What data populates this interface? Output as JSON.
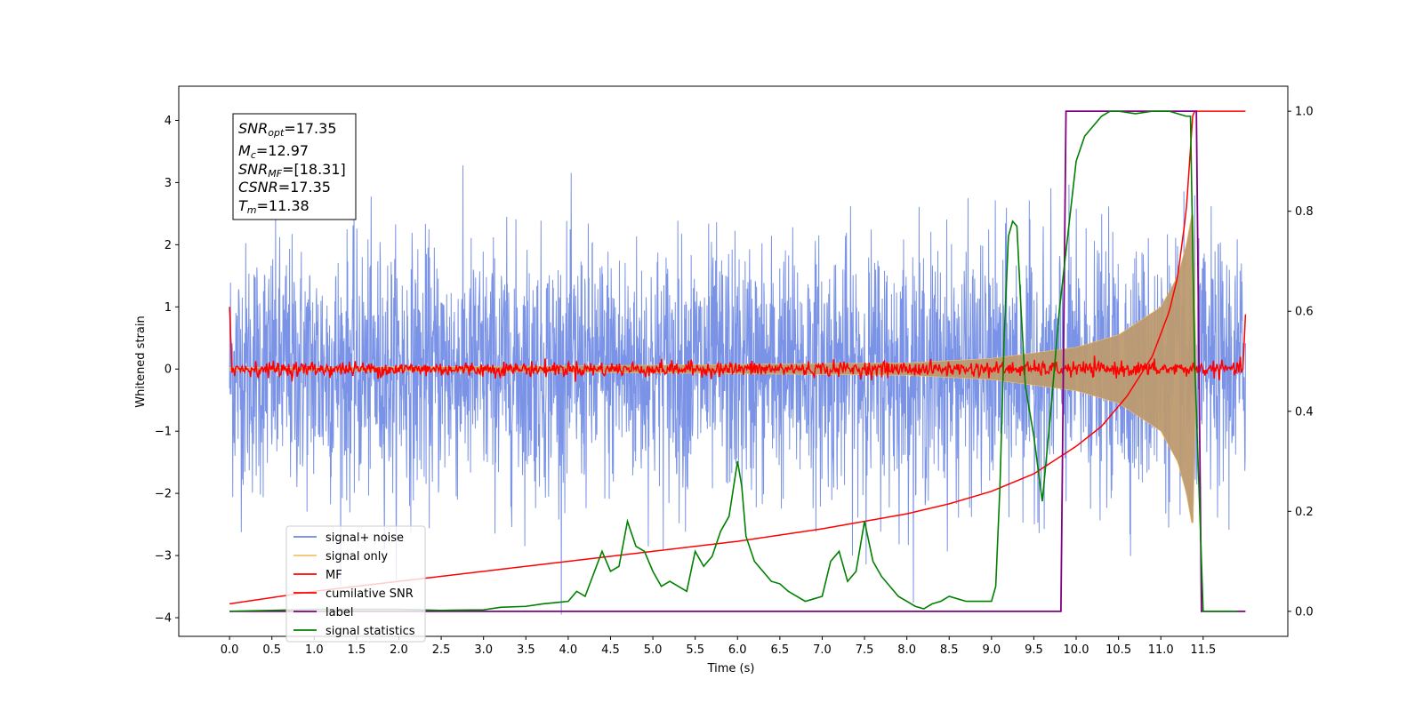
{
  "chart_data": {
    "type": "line",
    "title": "",
    "xlabel": "Time (s)",
    "ylabel": "Whitened strain",
    "xlim": [
      -0.6,
      12.5
    ],
    "ylim": [
      -4.3,
      4.55
    ],
    "y2lim": [
      -0.05,
      1.05
    ],
    "x_ticks": [
      "0.0",
      "0.5",
      "1.0",
      "1.5",
      "2.0",
      "2.5",
      "3.0",
      "3.5",
      "4.0",
      "4.5",
      "5.0",
      "5.5",
      "6.0",
      "6.5",
      "7.0",
      "7.5",
      "8.0",
      "8.5",
      "9.0",
      "9.5",
      "10.0",
      "10.5",
      "11.0",
      "11.5"
    ],
    "y_ticks": [
      "4",
      "3",
      "2",
      "1",
      "0",
      "−1",
      "−2",
      "−3",
      "−4"
    ],
    "y2_ticks": [
      "1.0",
      "0.8",
      "0.6",
      "0.4",
      "0.2",
      "0.0"
    ],
    "grid": false,
    "legend_position": "lower-left",
    "annotation": {
      "snr_opt": "17.35",
      "mc": "12.97",
      "snr_mf": "[18.31]",
      "csnr": "17.35",
      "tm": "11.38"
    },
    "series": [
      {
        "name": "signal+ noise",
        "color": "#6b87e3",
        "description_axis": "left",
        "noise_sigma": 1.0,
        "x_range": [
          0.0,
          12.0
        ]
      },
      {
        "name": "signal only",
        "color": "#f5c26b",
        "axis": "left",
        "envelope": [
          [
            0.0,
            0.02
          ],
          [
            4.0,
            0.05
          ],
          [
            8.0,
            0.1
          ],
          [
            9.0,
            0.17
          ],
          [
            10.0,
            0.35
          ],
          [
            10.5,
            0.55
          ],
          [
            11.0,
            1.0
          ],
          [
            11.2,
            1.5
          ],
          [
            11.3,
            2.0
          ],
          [
            11.38,
            2.6
          ],
          [
            11.42,
            0.0
          ]
        ]
      },
      {
        "name": "MF",
        "color": "#ff0000",
        "axis": "left",
        "start_value": 1.0,
        "end_value": 0.88,
        "noise_amplitude": 0.06
      },
      {
        "name": "cumilative SNR",
        "color": "#ff0000",
        "axis": "right",
        "x": [
          0.0,
          1.0,
          2.0,
          3.0,
          4.0,
          5.0,
          6.0,
          7.0,
          7.5,
          8.0,
          8.5,
          9.0,
          9.5,
          10.0,
          10.3,
          10.6,
          10.9,
          11.1,
          11.2,
          11.3,
          11.38,
          11.5,
          12.0
        ],
        "values": [
          0.015,
          0.04,
          0.06,
          0.08,
          0.1,
          0.12,
          0.14,
          0.165,
          0.18,
          0.195,
          0.215,
          0.24,
          0.275,
          0.33,
          0.37,
          0.43,
          0.51,
          0.6,
          0.67,
          0.8,
          1.0,
          1.0,
          1.0
        ]
      },
      {
        "name": "label",
        "color": "#800080",
        "axis": "right",
        "x": [
          0.0,
          9.82,
          9.88,
          11.42,
          11.48,
          12.0
        ],
        "values": [
          0.0,
          0.0,
          1.0,
          1.0,
          0.0,
          0.0
        ]
      },
      {
        "name": "signal statistics",
        "color": "#008000",
        "axis": "right",
        "x": [
          0.0,
          0.5,
          1.0,
          1.5,
          2.0,
          2.5,
          3.0,
          3.2,
          3.5,
          3.7,
          4.0,
          4.1,
          4.2,
          4.4,
          4.5,
          4.6,
          4.7,
          4.8,
          4.9,
          5.0,
          5.1,
          5.2,
          5.3,
          5.4,
          5.5,
          5.6,
          5.7,
          5.8,
          5.9,
          6.0,
          6.05,
          6.1,
          6.2,
          6.3,
          6.4,
          6.5,
          6.6,
          6.7,
          6.8,
          6.9,
          7.0,
          7.1,
          7.2,
          7.3,
          7.4,
          7.5,
          7.6,
          7.7,
          7.8,
          7.9,
          8.0,
          8.1,
          8.2,
          8.3,
          8.4,
          8.5,
          8.6,
          8.7,
          8.8,
          8.9,
          9.0,
          9.05,
          9.1,
          9.15,
          9.2,
          9.25,
          9.3,
          9.35,
          9.4,
          9.5,
          9.6,
          9.7,
          9.8,
          9.9,
          10.0,
          10.1,
          10.2,
          10.3,
          10.4,
          10.5,
          10.7,
          10.9,
          11.1,
          11.3,
          11.35,
          11.4,
          11.5,
          11.7,
          11.9
        ],
        "values": [
          0.0,
          0.002,
          0.004,
          0.004,
          0.004,
          0.002,
          0.003,
          0.008,
          0.01,
          0.015,
          0.02,
          0.04,
          0.03,
          0.12,
          0.08,
          0.09,
          0.18,
          0.13,
          0.12,
          0.08,
          0.05,
          0.06,
          0.05,
          0.04,
          0.12,
          0.09,
          0.11,
          0.16,
          0.19,
          0.3,
          0.25,
          0.15,
          0.1,
          0.08,
          0.06,
          0.055,
          0.04,
          0.03,
          0.02,
          0.025,
          0.03,
          0.1,
          0.12,
          0.06,
          0.08,
          0.18,
          0.1,
          0.07,
          0.05,
          0.03,
          0.02,
          0.01,
          0.005,
          0.015,
          0.02,
          0.03,
          0.025,
          0.02,
          0.02,
          0.02,
          0.02,
          0.05,
          0.25,
          0.55,
          0.75,
          0.78,
          0.77,
          0.6,
          0.45,
          0.35,
          0.22,
          0.4,
          0.6,
          0.75,
          0.9,
          0.95,
          0.97,
          0.99,
          1.0,
          1.0,
          0.995,
          1.0,
          1.0,
          0.99,
          0.99,
          0.5,
          0.0,
          0.0,
          0.0
        ]
      }
    ]
  }
}
